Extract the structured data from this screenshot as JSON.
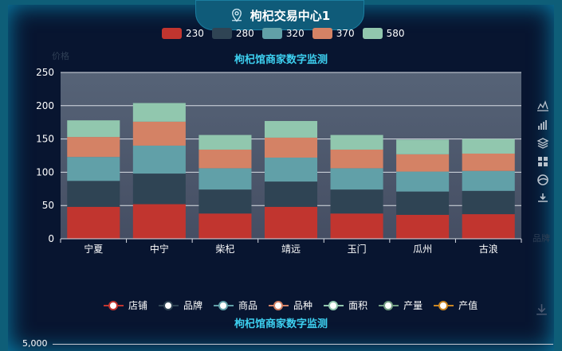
{
  "header": {
    "title": "枸杞交易中心1",
    "icon": "map-pin-icon"
  },
  "chart_data": [
    {
      "type": "bar",
      "stacked": true,
      "title": "枸杞馆商家数字监测",
      "ylabel": "价格",
      "xlabel": "品牌",
      "ylim": [
        0,
        250
      ],
      "yticks": [
        "0",
        "50",
        "100",
        "150",
        "200",
        "250"
      ],
      "categories": [
        "宁夏",
        "中宁",
        "柴杞",
        "靖远",
        "玉门",
        "瓜州",
        "古浪"
      ],
      "series": [
        {
          "name": "230",
          "color": "#c1352f",
          "values": [
            48,
            52,
            38,
            48,
            38,
            36,
            37
          ]
        },
        {
          "name": "280",
          "color": "#2f4454",
          "values": [
            39,
            46,
            36,
            38,
            36,
            35,
            35
          ]
        },
        {
          "name": "320",
          "color": "#61a0a8",
          "values": [
            36,
            42,
            32,
            36,
            32,
            30,
            30
          ]
        },
        {
          "name": "370",
          "color": "#d48265",
          "values": [
            30,
            36,
            28,
            30,
            28,
            26,
            26
          ]
        },
        {
          "name": "580",
          "color": "#91c7ae",
          "values": [
            25,
            28,
            22,
            25,
            22,
            22,
            22
          ]
        }
      ],
      "grid": true,
      "legend_position": "top-center"
    },
    {
      "type": "line",
      "title": "枸杞馆商家数字监测",
      "series": [
        {
          "name": "店铺",
          "color": "#c1352f"
        },
        {
          "name": "品牌",
          "color": "#2f4454"
        },
        {
          "name": "商品",
          "color": "#61a0a8"
        },
        {
          "name": "品种",
          "color": "#d48265"
        },
        {
          "name": "面积",
          "color": "#91c7ae"
        },
        {
          "name": "产量",
          "color": "#749f83"
        },
        {
          "name": "产值",
          "color": "#ca8622"
        }
      ],
      "yticks": [
        "5,000"
      ],
      "legend_position": "top-center"
    }
  ],
  "toolbox": {
    "tools": [
      "line-chart-icon",
      "bar-chart-icon",
      "stack-icon",
      "tiled-icon",
      "restore-icon",
      "save-image-icon"
    ],
    "download": "download-icon"
  },
  "colors": {
    "background": "#081530",
    "frame": "#0e5e78",
    "accent": "#3dd0f0"
  }
}
